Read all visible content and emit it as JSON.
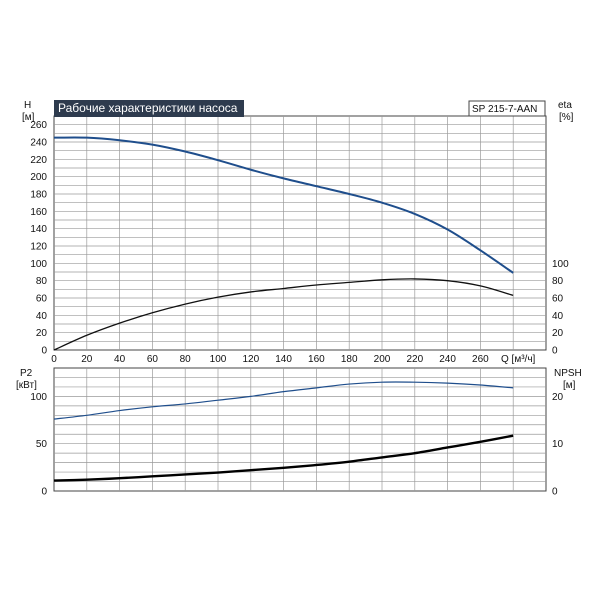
{
  "chart_data": [
    {
      "type": "line",
      "title": "Рабочие характеристики насоса",
      "model": "SP 215-7-AAN",
      "xlabel": "Q [м³/ч]",
      "xlim": [
        0,
        300
      ],
      "x_ticks": [
        "0",
        "20",
        "40",
        "60",
        "80",
        "100",
        "120",
        "140",
        "160",
        "180",
        "200",
        "220",
        "240",
        "260"
      ],
      "ylabel_left": [
        "H",
        "[м]"
      ],
      "ylim_left": [
        0,
        270
      ],
      "y_ticks_left": [
        "0",
        "20",
        "40",
        "60",
        "80",
        "100",
        "120",
        "140",
        "160",
        "180",
        "200",
        "220",
        "240",
        "260"
      ],
      "ylabel_right": [
        "eta",
        "[%]"
      ],
      "ylim_right": [
        0,
        270
      ],
      "y_ticks_right": [
        "0",
        "20",
        "40",
        "60",
        "80",
        "100"
      ],
      "grid": true,
      "colors": {
        "head": "#1f4e8c",
        "eta": "#111111",
        "title_bg": "#2e3b4e"
      },
      "series": [
        {
          "key": "head",
          "axis": "left",
          "x": [
            0,
            20,
            40,
            60,
            80,
            100,
            120,
            140,
            160,
            180,
            200,
            220,
            240,
            260,
            280
          ],
          "values": [
            245,
            245,
            242,
            237,
            229,
            219,
            208,
            198,
            189,
            180,
            170,
            157,
            139,
            115,
            89
          ]
        },
        {
          "key": "eta",
          "axis": "right",
          "x": [
            0,
            20,
            40,
            60,
            80,
            100,
            120,
            140,
            160,
            180,
            200,
            220,
            240,
            260,
            280
          ],
          "values": [
            0,
            17,
            31,
            43,
            53,
            61,
            67,
            71,
            75,
            78,
            81,
            82,
            80,
            74,
            63
          ]
        }
      ]
    },
    {
      "type": "line",
      "xlim": [
        0,
        300
      ],
      "ylabel_left": [
        "P2",
        "[кВт]"
      ],
      "ylim_left": [
        0,
        130
      ],
      "y_ticks_left": [
        "0",
        "50",
        "100"
      ],
      "ylabel_right": [
        "NPSH",
        "[м]"
      ],
      "ylim_right": [
        0,
        26
      ],
      "y_ticks_right": [
        "0",
        "10",
        "20"
      ],
      "grid": true,
      "colors": {
        "p2": "#1f4e8c",
        "npsh": "#000000"
      },
      "series": [
        {
          "key": "p2",
          "axis": "left",
          "x": [
            0,
            20,
            40,
            60,
            80,
            100,
            120,
            140,
            160,
            180,
            200,
            220,
            240,
            260,
            280
          ],
          "values": [
            76,
            80,
            85,
            89,
            92,
            96,
            100,
            105,
            109,
            113,
            115,
            115,
            114,
            112,
            109
          ]
        },
        {
          "key": "npsh",
          "axis": "right",
          "x": [
            0,
            20,
            40,
            60,
            80,
            100,
            120,
            140,
            160,
            180,
            200,
            220,
            240,
            260,
            280
          ],
          "values": [
            2.2,
            2.4,
            2.7,
            3.1,
            3.5,
            3.9,
            4.4,
            4.9,
            5.5,
            6.2,
            7.1,
            8.0,
            9.2,
            10.4,
            11.7
          ]
        }
      ]
    }
  ]
}
